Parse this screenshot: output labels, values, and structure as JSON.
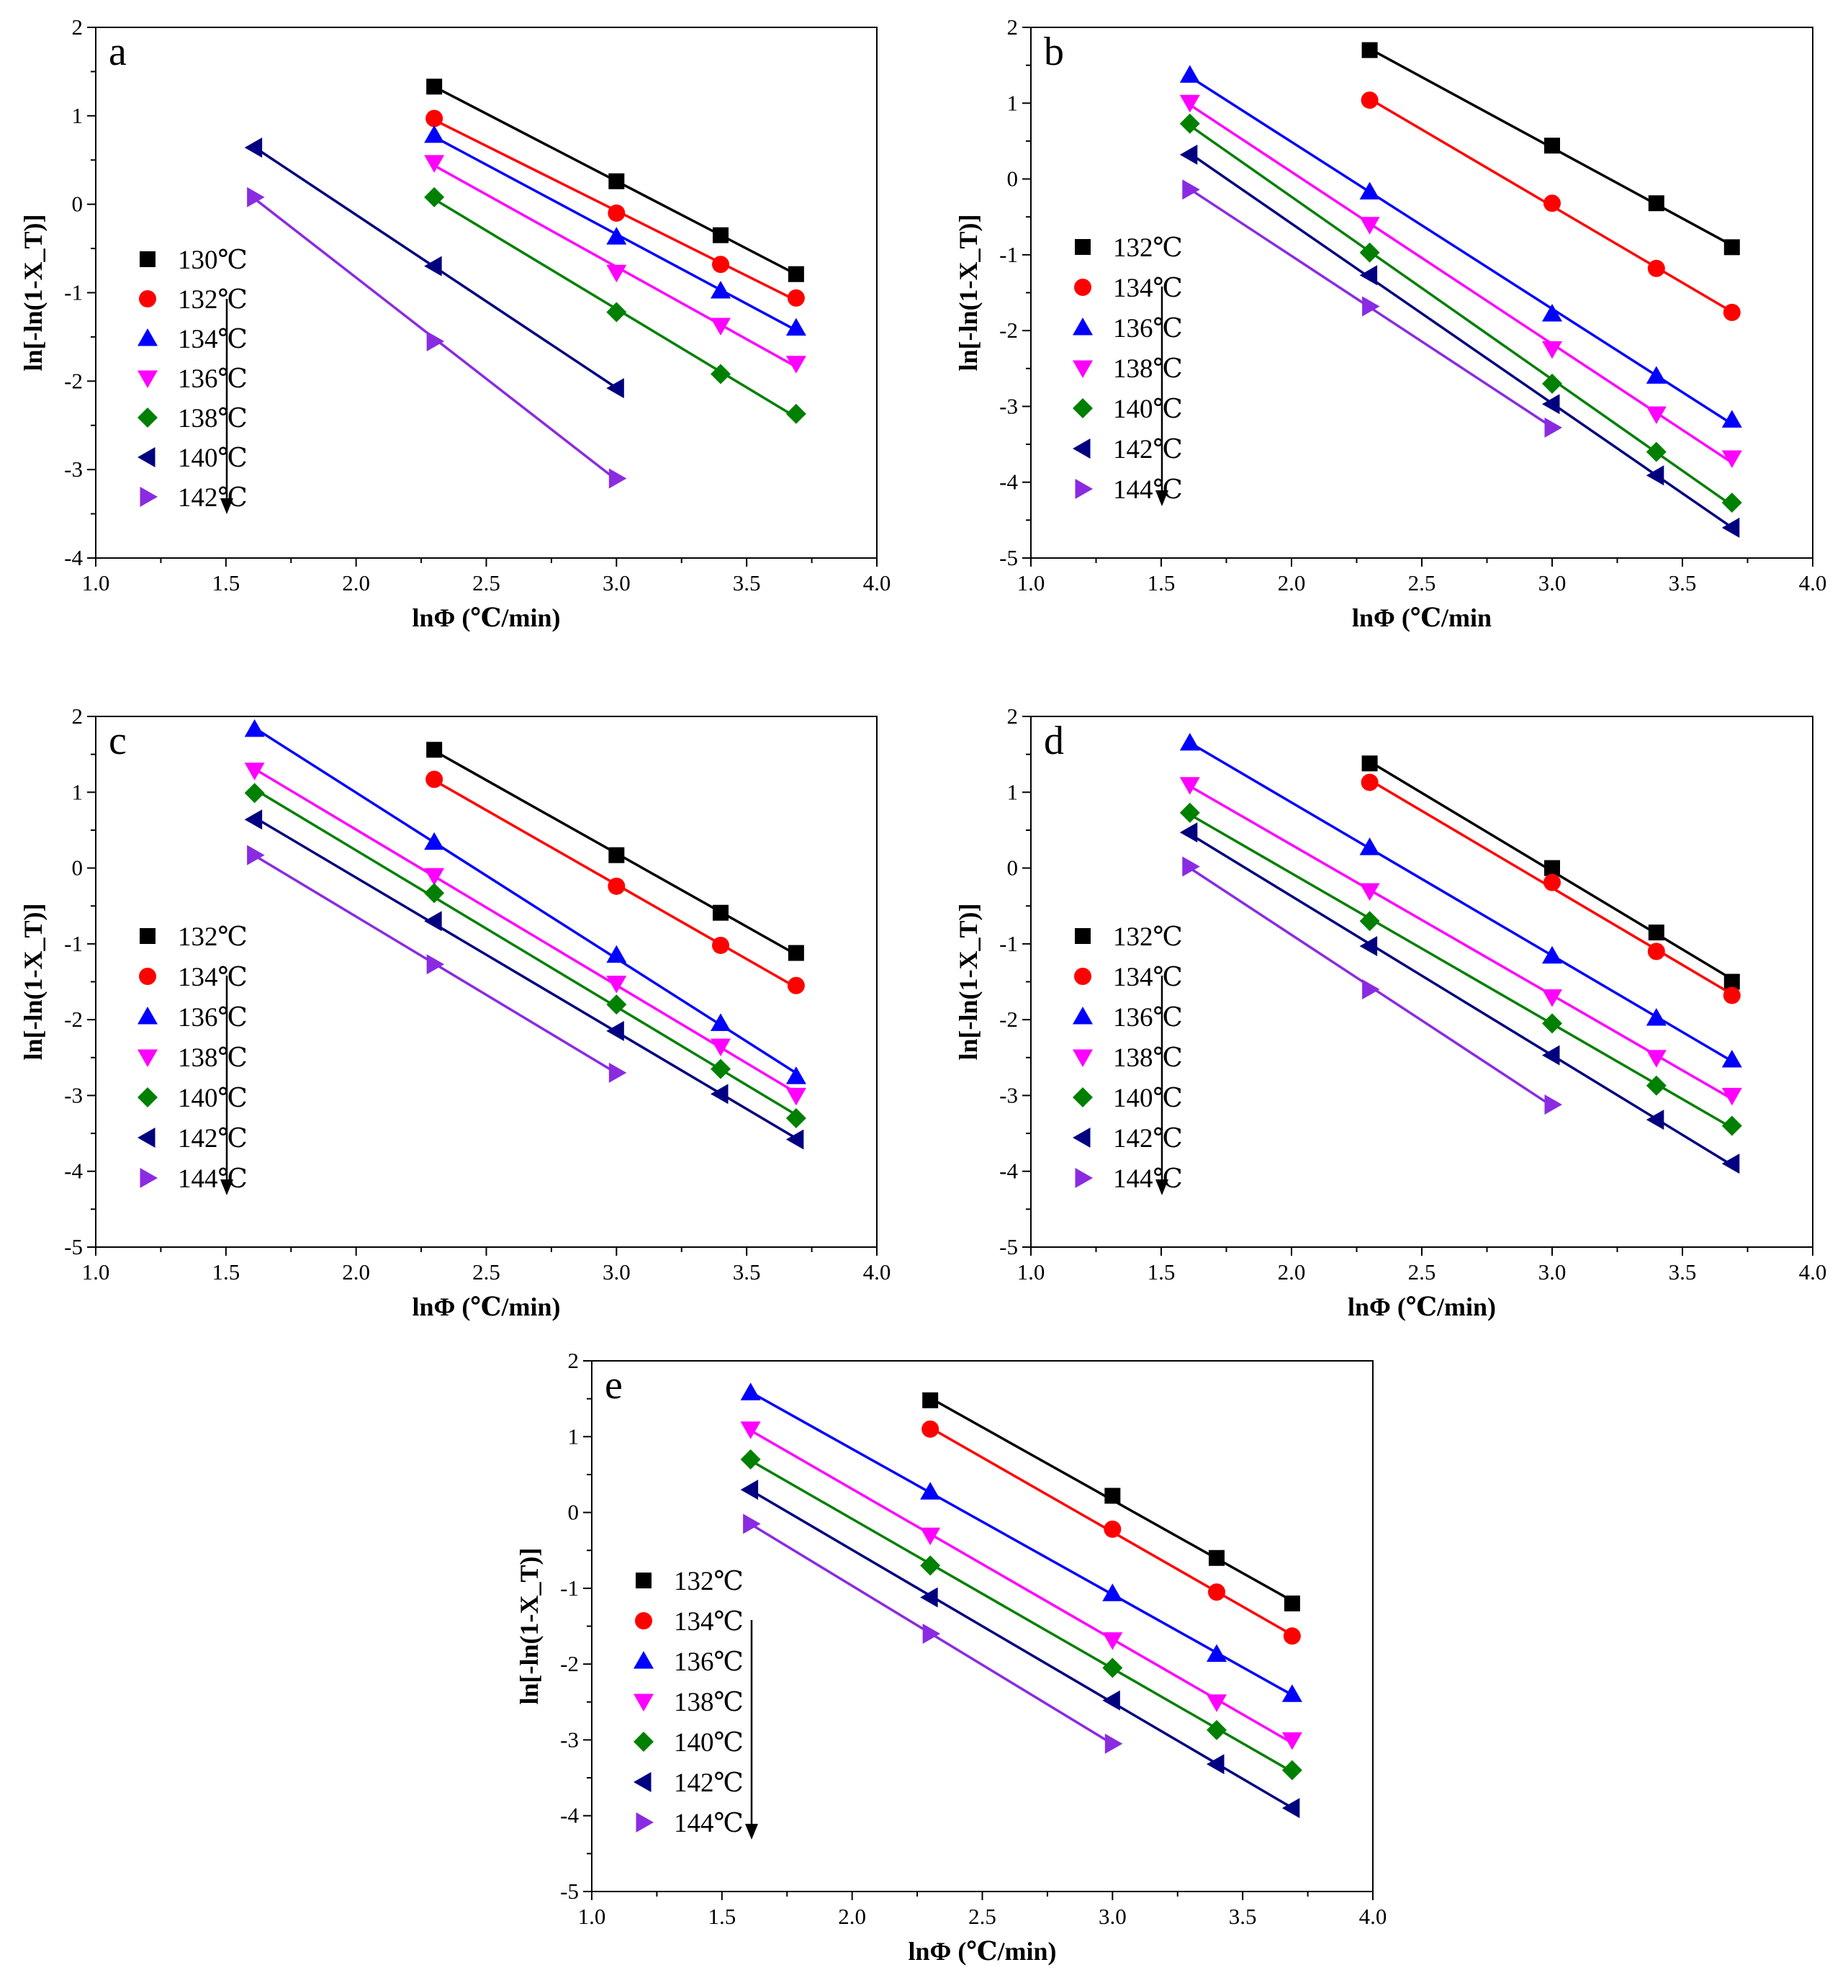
{
  "chart_data": [
    {
      "type": "scatter",
      "panel": "a",
      "xlabel": "lnΦ (℃/min)",
      "ylabel": "ln[-ln(1-X_T)]",
      "xlim": [
        1.0,
        4.0
      ],
      "ylim": [
        -4,
        2
      ],
      "xticks": [
        "1.0",
        "1.5",
        "2.0",
        "2.5",
        "3.0",
        "3.5",
        "4.0"
      ],
      "yticks": [
        "2",
        "1",
        "0",
        "-1",
        "-2",
        "-3",
        "-4"
      ],
      "legend_placement": "left",
      "series": [
        {
          "name": "130℃",
          "marker": "square",
          "color": "#000000",
          "x": [
            2.3,
            3.0,
            3.4,
            3.69
          ],
          "y": [
            1.33,
            0.26,
            -0.35,
            -0.79
          ]
        },
        {
          "name": "132℃",
          "marker": "circle",
          "color": "#ff0000",
          "x": [
            2.3,
            3.0,
            3.4,
            3.69
          ],
          "y": [
            0.97,
            -0.1,
            -0.68,
            -1.06
          ]
        },
        {
          "name": "134℃",
          "marker": "triangle-up",
          "color": "#0000ff",
          "x": [
            2.3,
            3.0,
            3.4,
            3.69
          ],
          "y": [
            0.78,
            -0.37,
            -0.98,
            -1.4
          ]
        },
        {
          "name": "136℃",
          "marker": "triangle-down",
          "color": "#ff00ff",
          "x": [
            2.3,
            3.0,
            3.4,
            3.69
          ],
          "y": [
            0.47,
            -0.77,
            -1.37,
            -1.8
          ]
        },
        {
          "name": "138℃",
          "marker": "diamond",
          "color": "#008000",
          "x": [
            2.3,
            3.0,
            3.4,
            3.69
          ],
          "y": [
            0.08,
            -1.22,
            -1.92,
            -2.37
          ]
        },
        {
          "name": "140℃",
          "marker": "triangle-left",
          "color": "#000080",
          "x": [
            1.61,
            2.3,
            3.0
          ],
          "y": [
            0.64,
            -0.7,
            -2.08
          ]
        },
        {
          "name": "142℃",
          "marker": "triangle-right",
          "color": "#8a2be2",
          "x": [
            1.61,
            2.3,
            3.0
          ],
          "y": [
            0.08,
            -1.55,
            -3.1
          ]
        }
      ]
    },
    {
      "type": "scatter",
      "panel": "b",
      "xlabel": "lnΦ (℃/min",
      "ylabel": "ln[-ln(1-X_T)]",
      "xlim": [
        1.0,
        4.0
      ],
      "ylim": [
        -5,
        2
      ],
      "xticks": [
        "1.0",
        "1.5",
        "2.0",
        "2.5",
        "3.0",
        "3.5",
        "4.0"
      ],
      "yticks": [
        "2",
        "1",
        "0",
        "-1",
        "-2",
        "-3",
        "-4",
        "-5"
      ],
      "legend_placement": "left",
      "series": [
        {
          "name": "132℃",
          "marker": "square",
          "color": "#000000",
          "x": [
            2.3,
            3.0,
            3.4,
            3.69
          ],
          "y": [
            1.7,
            0.44,
            -0.32,
            -0.9
          ]
        },
        {
          "name": "134℃",
          "marker": "circle",
          "color": "#ff0000",
          "x": [
            2.3,
            3.0,
            3.4,
            3.69
          ],
          "y": [
            1.04,
            -0.32,
            -1.18,
            -1.76
          ]
        },
        {
          "name": "136℃",
          "marker": "triangle-up",
          "color": "#0000ff",
          "x": [
            1.61,
            2.3,
            3.0,
            3.4,
            3.69
          ],
          "y": [
            1.37,
            -0.17,
            -1.78,
            -2.6,
            -3.18
          ]
        },
        {
          "name": "138℃",
          "marker": "triangle-down",
          "color": "#ff00ff",
          "x": [
            1.61,
            2.3,
            3.0,
            3.4,
            3.69
          ],
          "y": [
            1.01,
            -0.6,
            -2.24,
            -3.1,
            -3.68
          ]
        },
        {
          "name": "140℃",
          "marker": "diamond",
          "color": "#008000",
          "x": [
            1.61,
            2.3,
            3.0,
            3.4,
            3.69
          ],
          "y": [
            0.73,
            -0.97,
            -2.7,
            -3.6,
            -4.27
          ]
        },
        {
          "name": "142℃",
          "marker": "triangle-left",
          "color": "#000080",
          "x": [
            1.61,
            2.3,
            3.0,
            3.4,
            3.69
          ],
          "y": [
            0.32,
            -1.27,
            -2.97,
            -3.91,
            -4.6
          ]
        },
        {
          "name": "144℃",
          "marker": "triangle-right",
          "color": "#8a2be2",
          "x": [
            1.61,
            2.3,
            3.0
          ],
          "y": [
            -0.14,
            -1.68,
            -3.28
          ]
        }
      ]
    },
    {
      "type": "scatter",
      "panel": "c",
      "xlabel": "lnΦ (℃/min)",
      "ylabel": "ln[-ln(1-X_T)]",
      "xlim": [
        1.0,
        4.0
      ],
      "ylim": [
        -5,
        2
      ],
      "xticks": [
        "1.0",
        "1.5",
        "2.0",
        "2.5",
        "3.0",
        "3.5",
        "4.0"
      ],
      "yticks": [
        "2",
        "1",
        "0",
        "-1",
        "-2",
        "-3",
        "-4",
        "-5"
      ],
      "legend_placement": "left",
      "series": [
        {
          "name": "132℃",
          "marker": "square",
          "color": "#000000",
          "x": [
            2.3,
            3.0,
            3.4,
            3.69
          ],
          "y": [
            1.56,
            0.17,
            -0.59,
            -1.12
          ]
        },
        {
          "name": "134℃",
          "marker": "circle",
          "color": "#ff0000",
          "x": [
            2.3,
            3.0,
            3.4,
            3.69
          ],
          "y": [
            1.17,
            -0.24,
            -1.02,
            -1.55
          ]
        },
        {
          "name": "136℃",
          "marker": "triangle-up",
          "color": "#0000ff",
          "x": [
            1.61,
            2.3,
            3.0,
            3.4,
            3.69
          ],
          "y": [
            1.83,
            0.34,
            -1.15,
            -2.05,
            -2.75
          ]
        },
        {
          "name": "138℃",
          "marker": "triangle-down",
          "color": "#ff00ff",
          "x": [
            1.61,
            2.3,
            3.0,
            3.4,
            3.69
          ],
          "y": [
            1.29,
            -0.1,
            -1.52,
            -2.35,
            -3.0
          ]
        },
        {
          "name": "140℃",
          "marker": "diamond",
          "color": "#008000",
          "x": [
            1.61,
            2.3,
            3.0,
            3.4,
            3.69
          ],
          "y": [
            0.99,
            -0.33,
            -1.8,
            -2.65,
            -3.3
          ]
        },
        {
          "name": "142℃",
          "marker": "triangle-left",
          "color": "#000080",
          "x": [
            1.61,
            2.3,
            3.0,
            3.4,
            3.69
          ],
          "y": [
            0.64,
            -0.7,
            -2.15,
            -2.98,
            -3.58
          ]
        },
        {
          "name": "144℃",
          "marker": "triangle-right",
          "color": "#8a2be2",
          "x": [
            1.61,
            2.3,
            3.0
          ],
          "y": [
            0.17,
            -1.27,
            -2.7
          ]
        }
      ]
    },
    {
      "type": "scatter",
      "panel": "d",
      "xlabel": "lnΦ (℃/min)",
      "ylabel": "ln[-ln(1-X_T)]",
      "xlim": [
        1.0,
        4.0
      ],
      "ylim": [
        -5,
        2
      ],
      "xticks": [
        "1.0",
        "1.5",
        "2.0",
        "2.5",
        "3.0",
        "3.5",
        "4.0"
      ],
      "yticks": [
        "2",
        "1",
        "0",
        "-1",
        "-2",
        "-3",
        "-4",
        "-5"
      ],
      "legend_placement": "left",
      "series": [
        {
          "name": "132℃",
          "marker": "square",
          "color": "#000000",
          "x": [
            2.3,
            3.0,
            3.4,
            3.69
          ],
          "y": [
            1.38,
            0.0,
            -0.85,
            -1.5
          ]
        },
        {
          "name": "134℃",
          "marker": "circle",
          "color": "#ff0000",
          "x": [
            2.3,
            3.0,
            3.4,
            3.69
          ],
          "y": [
            1.13,
            -0.19,
            -1.1,
            -1.68
          ]
        },
        {
          "name": "136℃",
          "marker": "triangle-up",
          "color": "#0000ff",
          "x": [
            1.61,
            2.3,
            3.0,
            3.4,
            3.69
          ],
          "y": [
            1.65,
            0.27,
            -1.16,
            -1.98,
            -2.53
          ]
        },
        {
          "name": "138℃",
          "marker": "triangle-down",
          "color": "#ff00ff",
          "x": [
            1.61,
            2.3,
            3.0,
            3.4,
            3.69
          ],
          "y": [
            1.1,
            -0.3,
            -1.7,
            -2.5,
            -3.0
          ]
        },
        {
          "name": "140℃",
          "marker": "diamond",
          "color": "#008000",
          "x": [
            1.61,
            2.3,
            3.0,
            3.4,
            3.69
          ],
          "y": [
            0.73,
            -0.7,
            -2.05,
            -2.87,
            -3.4
          ]
        },
        {
          "name": "142℃",
          "marker": "triangle-left",
          "color": "#000080",
          "x": [
            1.61,
            2.3,
            3.0,
            3.4,
            3.69
          ],
          "y": [
            0.47,
            -1.03,
            -2.47,
            -3.32,
            -3.9
          ]
        },
        {
          "name": "144℃",
          "marker": "triangle-right",
          "color": "#8a2be2",
          "x": [
            1.61,
            2.3,
            3.0
          ],
          "y": [
            0.02,
            -1.6,
            -3.12
          ]
        }
      ]
    },
    {
      "type": "scatter",
      "panel": "e",
      "xlabel": "lnΦ (℃/min)",
      "ylabel": "ln[-ln(1-X_T)]",
      "xlim": [
        1.0,
        4.0
      ],
      "ylim": [
        -5,
        2
      ],
      "xticks": [
        "1.0",
        "1.5",
        "2.0",
        "2.5",
        "3.0",
        "3.5",
        "4.0"
      ],
      "yticks": [
        "2",
        "1",
        "0",
        "-1",
        "-2",
        "-3",
        "-4",
        "-5"
      ],
      "legend_placement": "left",
      "series": [
        {
          "name": "132℃",
          "marker": "square",
          "color": "#000000",
          "x": [
            2.3,
            3.0,
            3.4,
            3.69
          ],
          "y": [
            1.48,
            0.22,
            -0.6,
            -1.2
          ]
        },
        {
          "name": "134℃",
          "marker": "circle",
          "color": "#ff0000",
          "x": [
            2.3,
            3.0,
            3.4,
            3.69
          ],
          "y": [
            1.1,
            -0.22,
            -1.05,
            -1.63
          ]
        },
        {
          "name": "136℃",
          "marker": "triangle-up",
          "color": "#0000ff",
          "x": [
            1.61,
            2.3,
            3.0,
            3.4,
            3.69
          ],
          "y": [
            1.58,
            0.27,
            -1.07,
            -1.87,
            -2.4
          ]
        },
        {
          "name": "138℃",
          "marker": "triangle-down",
          "color": "#ff00ff",
          "x": [
            1.61,
            2.3,
            3.0,
            3.4,
            3.69
          ],
          "y": [
            1.1,
            -0.3,
            -1.68,
            -2.5,
            -3.0
          ]
        },
        {
          "name": "140℃",
          "marker": "diamond",
          "color": "#008000",
          "x": [
            1.61,
            2.3,
            3.0,
            3.4,
            3.69
          ],
          "y": [
            0.7,
            -0.7,
            -2.05,
            -2.87,
            -3.4
          ]
        },
        {
          "name": "142℃",
          "marker": "triangle-left",
          "color": "#000080",
          "x": [
            1.61,
            2.3,
            3.0,
            3.4,
            3.69
          ],
          "y": [
            0.3,
            -1.12,
            -2.48,
            -3.32,
            -3.9
          ]
        },
        {
          "name": "144℃",
          "marker": "triangle-right",
          "color": "#8a2be2",
          "x": [
            1.61,
            2.3,
            3.0
          ],
          "y": [
            -0.15,
            -1.6,
            -3.05
          ]
        }
      ]
    }
  ]
}
